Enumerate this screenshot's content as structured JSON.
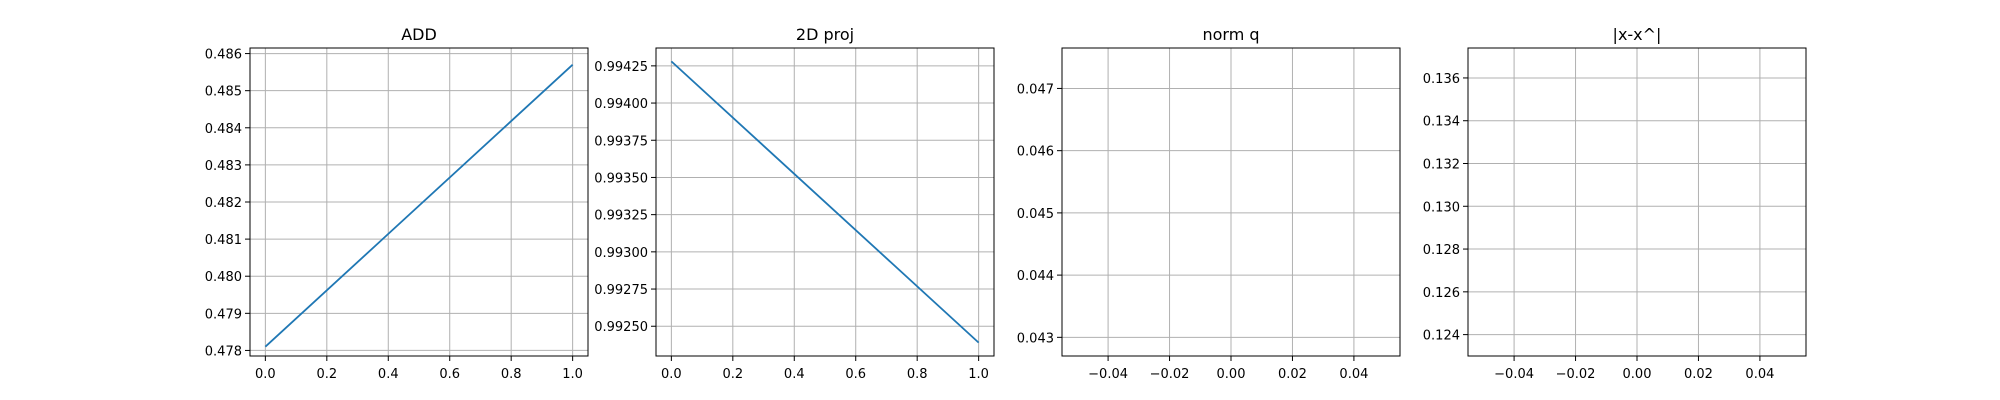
{
  "chart_data": [
    {
      "type": "line",
      "title": "ADD",
      "xlabel": "",
      "ylabel": "",
      "grid": true,
      "xlim": [
        -0.05,
        1.05
      ],
      "ylim": [
        0.47785,
        0.48615
      ],
      "xticks": [
        0.0,
        0.2,
        0.4,
        0.6,
        0.8,
        1.0
      ],
      "xtick_labels": [
        "0.0",
        "0.2",
        "0.4",
        "0.6",
        "0.8",
        "1.0"
      ],
      "yticks": [
        0.478,
        0.479,
        0.48,
        0.481,
        0.482,
        0.483,
        0.484,
        0.485,
        0.486
      ],
      "ytick_labels": [
        "0.478",
        "0.479",
        "0.480",
        "0.481",
        "0.482",
        "0.483",
        "0.484",
        "0.485",
        "0.486"
      ],
      "series": [
        {
          "color": "#1f77b4",
          "x": [
            0.0,
            1.0
          ],
          "y": [
            0.4781,
            0.4857
          ]
        }
      ]
    },
    {
      "type": "line",
      "title": "2D proj",
      "xlabel": "",
      "ylabel": "",
      "grid": true,
      "xlim": [
        -0.05,
        1.05
      ],
      "ylim": [
        0.9923,
        0.99437
      ],
      "xticks": [
        0.0,
        0.2,
        0.4,
        0.6,
        0.8,
        1.0
      ],
      "xtick_labels": [
        "0.0",
        "0.2",
        "0.4",
        "0.6",
        "0.8",
        "1.0"
      ],
      "yticks": [
        0.9925,
        0.99275,
        0.993,
        0.99325,
        0.9935,
        0.99375,
        0.994,
        0.99425
      ],
      "ytick_labels": [
        "0.99250",
        "0.99275",
        "0.99300",
        "0.99325",
        "0.99350",
        "0.99375",
        "0.99400",
        "0.99425"
      ],
      "series": [
        {
          "color": "#1f77b4",
          "x": [
            0.0,
            1.0
          ],
          "y": [
            0.99428,
            0.99239
          ]
        }
      ]
    },
    {
      "type": "line",
      "title": "norm q",
      "xlabel": "",
      "ylabel": "",
      "grid": true,
      "xlim": [
        -0.055,
        0.055
      ],
      "ylim": [
        0.0427,
        0.04765
      ],
      "xticks": [
        -0.04,
        -0.02,
        0.0,
        0.02,
        0.04
      ],
      "xtick_labels": [
        "−0.04",
        "−0.02",
        "0.00",
        "0.02",
        "0.04"
      ],
      "yticks": [
        0.043,
        0.044,
        0.045,
        0.046,
        0.047
      ],
      "ytick_labels": [
        "0.043",
        "0.044",
        "0.045",
        "0.046",
        "0.047"
      ],
      "series": [
        {
          "color": "#1f77b4",
          "x": [],
          "y": []
        }
      ]
    },
    {
      "type": "line",
      "title": "|x-x^|",
      "xlabel": "",
      "ylabel": "",
      "grid": true,
      "xlim": [
        -0.055,
        0.055
      ],
      "ylim": [
        0.123,
        0.1374
      ],
      "xticks": [
        -0.04,
        -0.02,
        0.0,
        0.02,
        0.04
      ],
      "xtick_labels": [
        "−0.04",
        "−0.02",
        "0.00",
        "0.02",
        "0.04"
      ],
      "yticks": [
        0.124,
        0.126,
        0.128,
        0.13,
        0.132,
        0.134,
        0.136
      ],
      "ytick_labels": [
        "0.124",
        "0.126",
        "0.128",
        "0.130",
        "0.132",
        "0.134",
        "0.136"
      ],
      "series": [
        {
          "color": "#1f77b4",
          "x": [],
          "y": []
        }
      ]
    }
  ]
}
